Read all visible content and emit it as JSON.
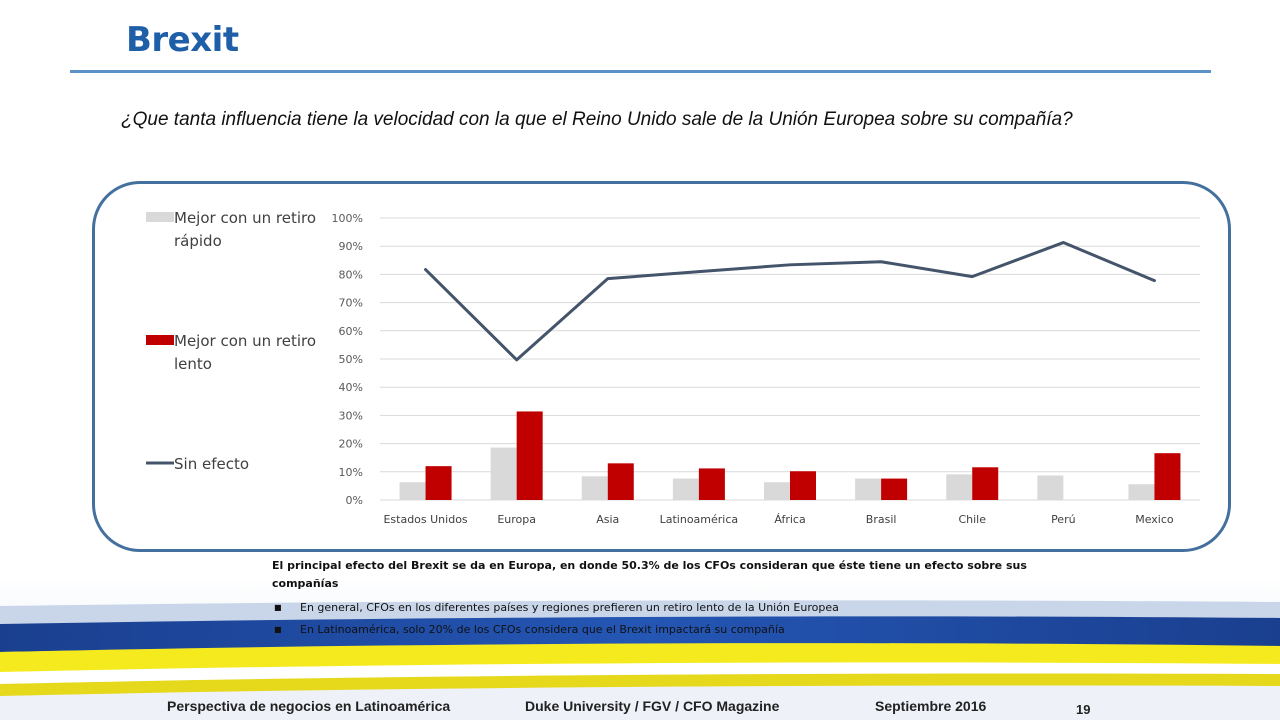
{
  "slide": {
    "title": "Brexit",
    "question": "¿Que tanta influencia tiene la velocidad con la que el Reino Unido sale de la Unión Europea sobre su compañía?"
  },
  "findings": {
    "lead": "El principal efecto del Brexit se da en Europa, en donde 50.3% de los CFOs consideran que éste tiene un efecto sobre sus compañías",
    "bullets": [
      "En general, CFOs en los diferentes países y regiones prefieren un retiro lento de la Unión Europea",
      "En Latinoamérica, solo 20% de los CFOs considera que el Brexit impactará su compañía"
    ],
    "bullet_marker": "■"
  },
  "footer": {
    "left": "Perspectiva de negocios en Latinoamérica",
    "middle": "Duke University / FGV / CFO Magazine",
    "right": "Septiembre 2016",
    "page": "19"
  },
  "chart_data": {
    "type": "bar",
    "title": "",
    "xlabel": "",
    "ylabel": "",
    "ylim": [
      0,
      100
    ],
    "y_ticks": [
      "0%",
      "10%",
      "20%",
      "30%",
      "40%",
      "50%",
      "60%",
      "70%",
      "80%",
      "90%",
      "100%"
    ],
    "grid": true,
    "legend_position": "left",
    "categories": [
      "Estados Unidos",
      "Europa",
      "Asia",
      "Latinoamérica",
      "África",
      "Brasil",
      "Chile",
      "Perú",
      "Mexico"
    ],
    "series": [
      {
        "name": "Mejor con un retiro rápido",
        "kind": "bar",
        "color": "#d9d9d9",
        "values": [
          6.3,
          18.6,
          8.4,
          7.6,
          6.3,
          7.6,
          9.1,
          8.7,
          5.6
        ]
      },
      {
        "name": "Mejor con un retiro lento",
        "kind": "bar",
        "color": "#c00000",
        "values": [
          12.0,
          31.4,
          13.0,
          11.2,
          10.2,
          7.6,
          11.6,
          0,
          16.6
        ]
      },
      {
        "name": "Sin efecto",
        "kind": "line",
        "color": "#44546a",
        "values": [
          81.7,
          49.7,
          78.5,
          81.0,
          83.4,
          84.5,
          79.2,
          91.3,
          77.8
        ]
      }
    ]
  }
}
